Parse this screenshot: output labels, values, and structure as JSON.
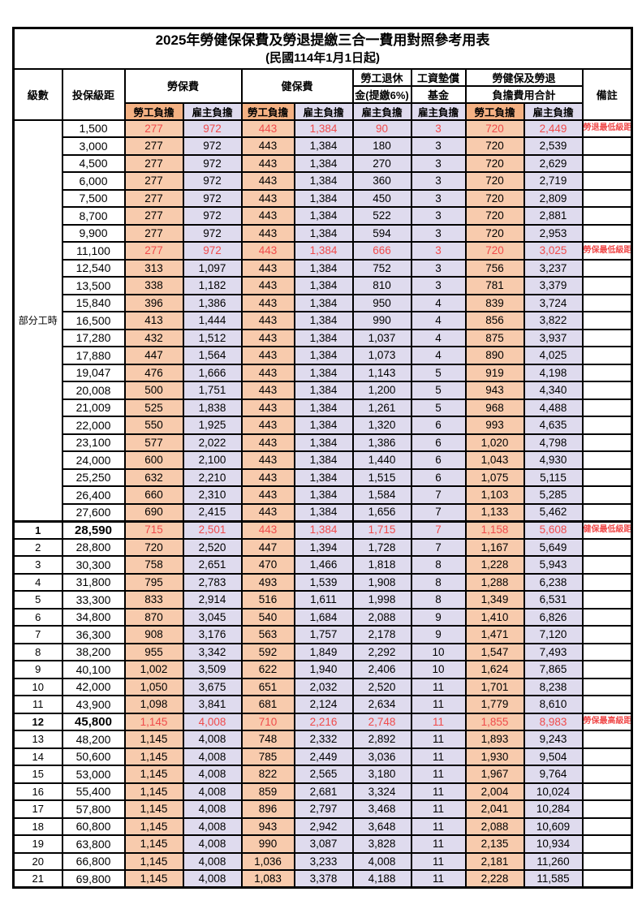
{
  "page": {
    "title": "2025年勞健保保費及勞退提繳三合一費用對照參考用表",
    "subtitle": "(民國114年1月1日起)"
  },
  "colors": {
    "employee_header_bg": "#F4B183",
    "employee_cell_bg": "#F8CBAD",
    "employer_bg": "#DFDBEE",
    "highlight_red": "#F04B4B",
    "border": "#000000",
    "text": "#000000",
    "background": "#FFFFFF"
  },
  "columns": {
    "level": "級數",
    "bracket": "投保級距",
    "labor_fee": "勞保費",
    "health_fee": "健保費",
    "pension_l1": "勞工退休",
    "pension_l2": "金(提繳6%)",
    "wage_fund_l1": "工資墊償",
    "wage_fund_l2": "基金",
    "total_l1": "勞健保及勞退",
    "total_l2": "負擔費用合計",
    "employee": "勞工負擔",
    "employer": "雇主負擔",
    "remark": "備註"
  },
  "part_time": {
    "label": "部分工時"
  },
  "part_time_rows": [
    {
      "bracket": "1,500",
      "values": [
        "277",
        "972",
        "443",
        "1,384",
        "90",
        "3",
        "720",
        "2,449"
      ],
      "remark": "勞退最低級距",
      "red": true
    },
    {
      "bracket": "3,000",
      "values": [
        "277",
        "972",
        "443",
        "1,384",
        "180",
        "3",
        "720",
        "2,539"
      ],
      "remark": ""
    },
    {
      "bracket": "4,500",
      "values": [
        "277",
        "972",
        "443",
        "1,384",
        "270",
        "3",
        "720",
        "2,629"
      ],
      "remark": ""
    },
    {
      "bracket": "6,000",
      "values": [
        "277",
        "972",
        "443",
        "1,384",
        "360",
        "3",
        "720",
        "2,719"
      ],
      "remark": ""
    },
    {
      "bracket": "7,500",
      "values": [
        "277",
        "972",
        "443",
        "1,384",
        "450",
        "3",
        "720",
        "2,809"
      ],
      "remark": ""
    },
    {
      "bracket": "8,700",
      "values": [
        "277",
        "972",
        "443",
        "1,384",
        "522",
        "3",
        "720",
        "2,881"
      ],
      "remark": ""
    },
    {
      "bracket": "9,900",
      "values": [
        "277",
        "972",
        "443",
        "1,384",
        "594",
        "3",
        "720",
        "2,953"
      ],
      "remark": ""
    },
    {
      "bracket": "11,100",
      "values": [
        "277",
        "972",
        "443",
        "1,384",
        "666",
        "3",
        "720",
        "3,025"
      ],
      "remark": "勞保最低級距",
      "red": true
    },
    {
      "bracket": "12,540",
      "values": [
        "313",
        "1,097",
        "443",
        "1,384",
        "752",
        "3",
        "756",
        "3,237"
      ],
      "remark": ""
    },
    {
      "bracket": "13,500",
      "values": [
        "338",
        "1,182",
        "443",
        "1,384",
        "810",
        "3",
        "781",
        "3,379"
      ],
      "remark": ""
    },
    {
      "bracket": "15,840",
      "values": [
        "396",
        "1,386",
        "443",
        "1,384",
        "950",
        "4",
        "839",
        "3,724"
      ],
      "remark": ""
    },
    {
      "bracket": "16,500",
      "values": [
        "413",
        "1,444",
        "443",
        "1,384",
        "990",
        "4",
        "856",
        "3,822"
      ],
      "remark": ""
    },
    {
      "bracket": "17,280",
      "values": [
        "432",
        "1,512",
        "443",
        "1,384",
        "1,037",
        "4",
        "875",
        "3,937"
      ],
      "remark": ""
    },
    {
      "bracket": "17,880",
      "values": [
        "447",
        "1,564",
        "443",
        "1,384",
        "1,073",
        "4",
        "890",
        "4,025"
      ],
      "remark": ""
    },
    {
      "bracket": "19,047",
      "values": [
        "476",
        "1,666",
        "443",
        "1,384",
        "1,143",
        "5",
        "919",
        "4,198"
      ],
      "remark": ""
    },
    {
      "bracket": "20,008",
      "values": [
        "500",
        "1,751",
        "443",
        "1,384",
        "1,200",
        "5",
        "943",
        "4,340"
      ],
      "remark": ""
    },
    {
      "bracket": "21,009",
      "values": [
        "525",
        "1,838",
        "443",
        "1,384",
        "1,261",
        "5",
        "968",
        "4,488"
      ],
      "remark": ""
    },
    {
      "bracket": "22,000",
      "values": [
        "550",
        "1,925",
        "443",
        "1,384",
        "1,320",
        "6",
        "993",
        "4,635"
      ],
      "remark": ""
    },
    {
      "bracket": "23,100",
      "values": [
        "577",
        "2,022",
        "443",
        "1,384",
        "1,386",
        "6",
        "1,020",
        "4,798"
      ],
      "remark": ""
    },
    {
      "bracket": "24,000",
      "values": [
        "600",
        "2,100",
        "443",
        "1,384",
        "1,440",
        "6",
        "1,043",
        "4,930"
      ],
      "remark": ""
    },
    {
      "bracket": "25,250",
      "values": [
        "632",
        "2,210",
        "443",
        "1,384",
        "1,515",
        "6",
        "1,075",
        "5,115"
      ],
      "remark": ""
    },
    {
      "bracket": "26,400",
      "values": [
        "660",
        "2,310",
        "443",
        "1,384",
        "1,584",
        "7",
        "1,103",
        "5,285"
      ],
      "remark": ""
    },
    {
      "bracket": "27,600",
      "values": [
        "690",
        "2,415",
        "443",
        "1,384",
        "1,656",
        "7",
        "1,133",
        "5,462"
      ],
      "remark": ""
    }
  ],
  "level_rows": [
    {
      "level": "1",
      "bracket": "28,590",
      "values": [
        "715",
        "2,501",
        "443",
        "1,384",
        "1,715",
        "7",
        "1,158",
        "5,608"
      ],
      "remark": "健保最低級距",
      "red": true,
      "bold": true,
      "section_start": true
    },
    {
      "level": "2",
      "bracket": "28,800",
      "values": [
        "720",
        "2,520",
        "447",
        "1,394",
        "1,728",
        "7",
        "1,167",
        "5,649"
      ],
      "remark": ""
    },
    {
      "level": "3",
      "bracket": "30,300",
      "values": [
        "758",
        "2,651",
        "470",
        "1,466",
        "1,818",
        "8",
        "1,228",
        "5,943"
      ],
      "remark": ""
    },
    {
      "level": "4",
      "bracket": "31,800",
      "values": [
        "795",
        "2,783",
        "493",
        "1,539",
        "1,908",
        "8",
        "1,288",
        "6,238"
      ],
      "remark": ""
    },
    {
      "level": "5",
      "bracket": "33,300",
      "values": [
        "833",
        "2,914",
        "516",
        "1,611",
        "1,998",
        "8",
        "1,349",
        "6,531"
      ],
      "remark": ""
    },
    {
      "level": "6",
      "bracket": "34,800",
      "values": [
        "870",
        "3,045",
        "540",
        "1,684",
        "2,088",
        "9",
        "1,410",
        "6,826"
      ],
      "remark": ""
    },
    {
      "level": "7",
      "bracket": "36,300",
      "values": [
        "908",
        "3,176",
        "563",
        "1,757",
        "2,178",
        "9",
        "1,471",
        "7,120"
      ],
      "remark": ""
    },
    {
      "level": "8",
      "bracket": "38,200",
      "values": [
        "955",
        "3,342",
        "592",
        "1,849",
        "2,292",
        "10",
        "1,547",
        "7,493"
      ],
      "remark": ""
    },
    {
      "level": "9",
      "bracket": "40,100",
      "values": [
        "1,002",
        "3,509",
        "622",
        "1,940",
        "2,406",
        "10",
        "1,624",
        "7,865"
      ],
      "remark": ""
    },
    {
      "level": "10",
      "bracket": "42,000",
      "values": [
        "1,050",
        "3,675",
        "651",
        "2,032",
        "2,520",
        "11",
        "1,701",
        "8,238"
      ],
      "remark": ""
    },
    {
      "level": "11",
      "bracket": "43,900",
      "values": [
        "1,098",
        "3,841",
        "681",
        "2,124",
        "2,634",
        "11",
        "1,779",
        "8,610"
      ],
      "remark": ""
    },
    {
      "level": "12",
      "bracket": "45,800",
      "values": [
        "1,145",
        "4,008",
        "710",
        "2,216",
        "2,748",
        "11",
        "1,855",
        "8,983"
      ],
      "remark": "勞保最高級距",
      "red": true,
      "bold": true
    },
    {
      "level": "13",
      "bracket": "48,200",
      "values": [
        "1,145",
        "4,008",
        "748",
        "2,332",
        "2,892",
        "11",
        "1,893",
        "9,243"
      ],
      "remark": ""
    },
    {
      "level": "14",
      "bracket": "50,600",
      "values": [
        "1,145",
        "4,008",
        "785",
        "2,449",
        "3,036",
        "11",
        "1,930",
        "9,504"
      ],
      "remark": ""
    },
    {
      "level": "15",
      "bracket": "53,000",
      "values": [
        "1,145",
        "4,008",
        "822",
        "2,565",
        "3,180",
        "11",
        "1,967",
        "9,764"
      ],
      "remark": ""
    },
    {
      "level": "16",
      "bracket": "55,400",
      "values": [
        "1,145",
        "4,008",
        "859",
        "2,681",
        "3,324",
        "11",
        "2,004",
        "10,024"
      ],
      "remark": ""
    },
    {
      "level": "17",
      "bracket": "57,800",
      "values": [
        "1,145",
        "4,008",
        "896",
        "2,797",
        "3,468",
        "11",
        "2,041",
        "10,284"
      ],
      "remark": ""
    },
    {
      "level": "18",
      "bracket": "60,800",
      "values": [
        "1,145",
        "4,008",
        "943",
        "2,942",
        "3,648",
        "11",
        "2,088",
        "10,609"
      ],
      "remark": ""
    },
    {
      "level": "19",
      "bracket": "63,800",
      "values": [
        "1,145",
        "4,008",
        "990",
        "3,087",
        "3,828",
        "11",
        "2,135",
        "10,934"
      ],
      "remark": ""
    },
    {
      "level": "20",
      "bracket": "66,800",
      "values": [
        "1,145",
        "4,008",
        "1,036",
        "3,233",
        "4,008",
        "11",
        "2,181",
        "11,260"
      ],
      "remark": ""
    },
    {
      "level": "21",
      "bracket": "69,800",
      "values": [
        "1,145",
        "4,008",
        "1,083",
        "3,378",
        "4,188",
        "11",
        "2,228",
        "11,585"
      ],
      "remark": ""
    }
  ]
}
